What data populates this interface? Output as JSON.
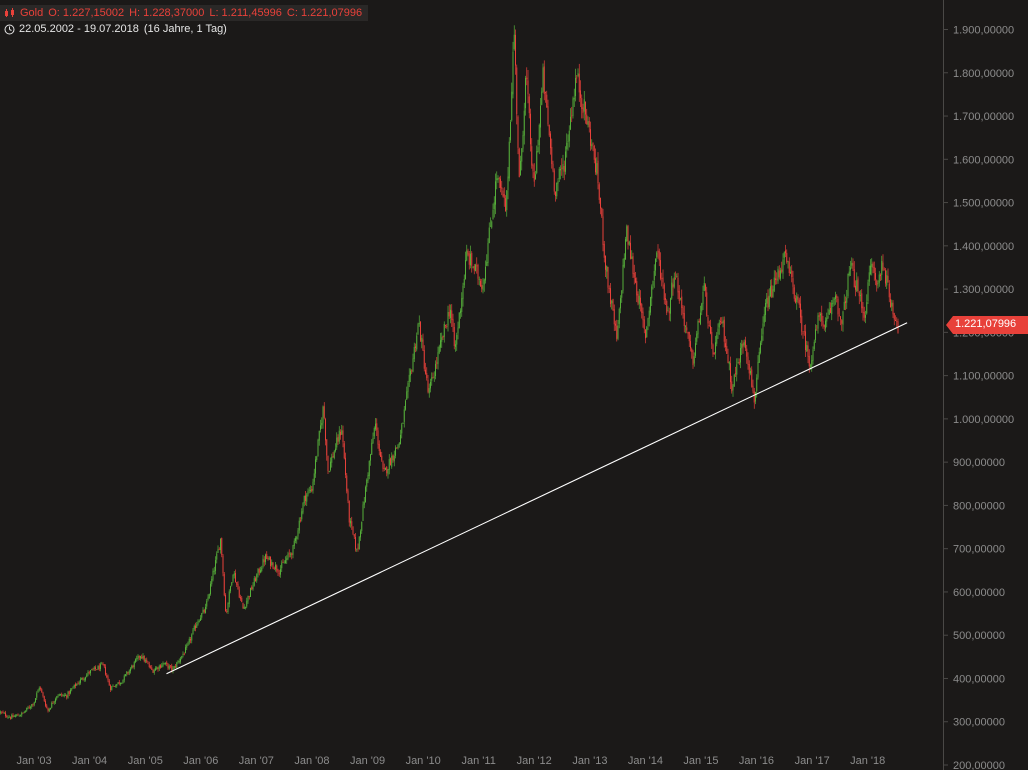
{
  "header": {
    "instrument": "Gold",
    "open": "O: 1.227,15002",
    "high": "H: 1.228,37000",
    "low": "L: 1.211,45996",
    "close": "C: 1.221,07996",
    "range": "22.05.2002 - 19.07.2018",
    "period": "(16 Jahre, 1 Tag)"
  },
  "last_price_label": "1.221,07996",
  "colors": {
    "up": "#56b03a",
    "down": "#e8413a",
    "background": "#1b1918",
    "axis_text": "#8c8c8c",
    "trendline": "#ffffff"
  },
  "chart_data": {
    "type": "line",
    "title": "Gold",
    "style": "candlestick (daily)",
    "x_type": "date",
    "x_range": [
      "2002-05-22",
      "2018-07-19"
    ],
    "ylim": [
      200,
      1950
    ],
    "log_scale": false,
    "grid": false,
    "x_ticks": [
      {
        "label": "Jan '03",
        "date": "2003-01-01"
      },
      {
        "label": "Jan '04",
        "date": "2004-01-01"
      },
      {
        "label": "Jan '05",
        "date": "2005-01-01"
      },
      {
        "label": "Jan '06",
        "date": "2006-01-01"
      },
      {
        "label": "Jan '07",
        "date": "2007-01-01"
      },
      {
        "label": "Jan '08",
        "date": "2008-01-01"
      },
      {
        "label": "Jan '09",
        "date": "2009-01-01"
      },
      {
        "label": "Jan '10",
        "date": "2010-01-01"
      },
      {
        "label": "Jan '11",
        "date": "2011-01-01"
      },
      {
        "label": "Jan '12",
        "date": "2012-01-01"
      },
      {
        "label": "Jan '13",
        "date": "2013-01-01"
      },
      {
        "label": "Jan '14",
        "date": "2014-01-01"
      },
      {
        "label": "Jan '15",
        "date": "2015-01-01"
      },
      {
        "label": "Jan '16",
        "date": "2016-01-01"
      },
      {
        "label": "Jan '17",
        "date": "2017-01-01"
      },
      {
        "label": "Jan '18",
        "date": "2018-01-01"
      }
    ],
    "y_ticks": [
      {
        "label": "200,00000",
        "value": 200
      },
      {
        "label": "300,00000",
        "value": 300
      },
      {
        "label": "400,00000",
        "value": 400
      },
      {
        "label": "500,00000",
        "value": 500
      },
      {
        "label": "600,00000",
        "value": 600
      },
      {
        "label": "700,00000",
        "value": 700
      },
      {
        "label": "800,00000",
        "value": 800
      },
      {
        "label": "900,00000",
        "value": 900
      },
      {
        "label": "1.000,00000",
        "value": 1000
      },
      {
        "label": "1.100,00000",
        "value": 1100
      },
      {
        "label": "1.200,00000",
        "value": 1200
      },
      {
        "label": "1.300,00000",
        "value": 1300
      },
      {
        "label": "1.400,00000",
        "value": 1400
      },
      {
        "label": "1.500,00000",
        "value": 1500
      },
      {
        "label": "1.600,00000",
        "value": 1600
      },
      {
        "label": "1.700,00000",
        "value": 1700
      },
      {
        "label": "1.800,00000",
        "value": 1800
      },
      {
        "label": "1.900,00000",
        "value": 1900
      }
    ],
    "series": [
      {
        "values": [
          [
            "2002-05-22",
            322
          ],
          [
            "2002-08-01",
            310
          ],
          [
            "2002-10-15",
            318
          ],
          [
            "2002-12-31",
            345
          ],
          [
            "2003-02-05",
            382
          ],
          [
            "2003-04-01",
            325
          ],
          [
            "2003-06-01",
            362
          ],
          [
            "2003-08-01",
            360
          ],
          [
            "2003-10-01",
            385
          ],
          [
            "2003-12-31",
            415
          ],
          [
            "2004-03-31",
            430
          ],
          [
            "2004-05-15",
            378
          ],
          [
            "2004-08-01",
            395
          ],
          [
            "2004-12-01",
            455
          ],
          [
            "2005-02-15",
            418
          ],
          [
            "2005-05-01",
            435
          ],
          [
            "2005-07-01",
            420
          ],
          [
            "2005-09-30",
            470
          ],
          [
            "2005-12-12",
            535
          ],
          [
            "2006-02-01",
            560
          ],
          [
            "2006-05-12",
            725
          ],
          [
            "2006-06-14",
            545
          ],
          [
            "2006-08-01",
            650
          ],
          [
            "2006-10-06",
            560
          ],
          [
            "2006-12-31",
            635
          ],
          [
            "2007-03-01",
            680
          ],
          [
            "2007-06-01",
            650
          ],
          [
            "2007-09-01",
            700
          ],
          [
            "2007-11-15",
            820
          ],
          [
            "2008-01-01",
            840
          ],
          [
            "2008-03-17",
            1030
          ],
          [
            "2008-04-15",
            880
          ],
          [
            "2008-07-15",
            980
          ],
          [
            "2008-09-01",
            770
          ],
          [
            "2008-10-24",
            690
          ],
          [
            "2008-12-31",
            870
          ],
          [
            "2009-02-20",
            990
          ],
          [
            "2009-04-15",
            870
          ],
          [
            "2009-08-01",
            950
          ],
          [
            "2009-12-03",
            1225
          ],
          [
            "2010-02-05",
            1055
          ],
          [
            "2010-06-28",
            1260
          ],
          [
            "2010-07-28",
            1155
          ],
          [
            "2010-10-15",
            1380
          ],
          [
            "2011-01-28",
            1310
          ],
          [
            "2011-04-30",
            1560
          ],
          [
            "2011-07-01",
            1480
          ],
          [
            "2011-08-22",
            1900
          ],
          [
            "2011-09-26",
            1535
          ],
          [
            "2011-11-08",
            1800
          ],
          [
            "2011-12-29",
            1525
          ],
          [
            "2012-02-28",
            1790
          ],
          [
            "2012-05-16",
            1530
          ],
          [
            "2012-07-15",
            1590
          ],
          [
            "2012-10-04",
            1795
          ],
          [
            "2012-12-31",
            1660
          ],
          [
            "2013-02-20",
            1560
          ],
          [
            "2013-04-15",
            1350
          ],
          [
            "2013-06-28",
            1180
          ],
          [
            "2013-08-28",
            1435
          ],
          [
            "2013-12-31",
            1190
          ],
          [
            "2014-03-17",
            1390
          ],
          [
            "2014-05-30",
            1240
          ],
          [
            "2014-07-10",
            1345
          ],
          [
            "2014-11-07",
            1130
          ],
          [
            "2015-01-22",
            1305
          ],
          [
            "2015-03-17",
            1145
          ],
          [
            "2015-05-18",
            1230
          ],
          [
            "2015-07-24",
            1075
          ],
          [
            "2015-10-14",
            1190
          ],
          [
            "2015-12-17",
            1045
          ],
          [
            "2016-03-01",
            1260
          ],
          [
            "2016-07-06",
            1375
          ],
          [
            "2016-10-01",
            1260
          ],
          [
            "2016-12-15",
            1125
          ],
          [
            "2017-03-01",
            1260
          ],
          [
            "2017-03-15",
            1195
          ],
          [
            "2017-06-06",
            1295
          ],
          [
            "2017-07-10",
            1205
          ],
          [
            "2017-09-08",
            1355
          ],
          [
            "2017-12-12",
            1240
          ],
          [
            "2018-01-25",
            1365
          ],
          [
            "2018-03-01",
            1305
          ],
          [
            "2018-04-11",
            1365
          ],
          [
            "2018-05-21",
            1285
          ],
          [
            "2018-07-19",
            1215
          ]
        ]
      }
    ],
    "annotations": [
      {
        "type": "trendline",
        "from": [
          "2005-05-20",
          411
        ],
        "to": [
          "2018-09-17",
          1222
        ]
      }
    ]
  }
}
